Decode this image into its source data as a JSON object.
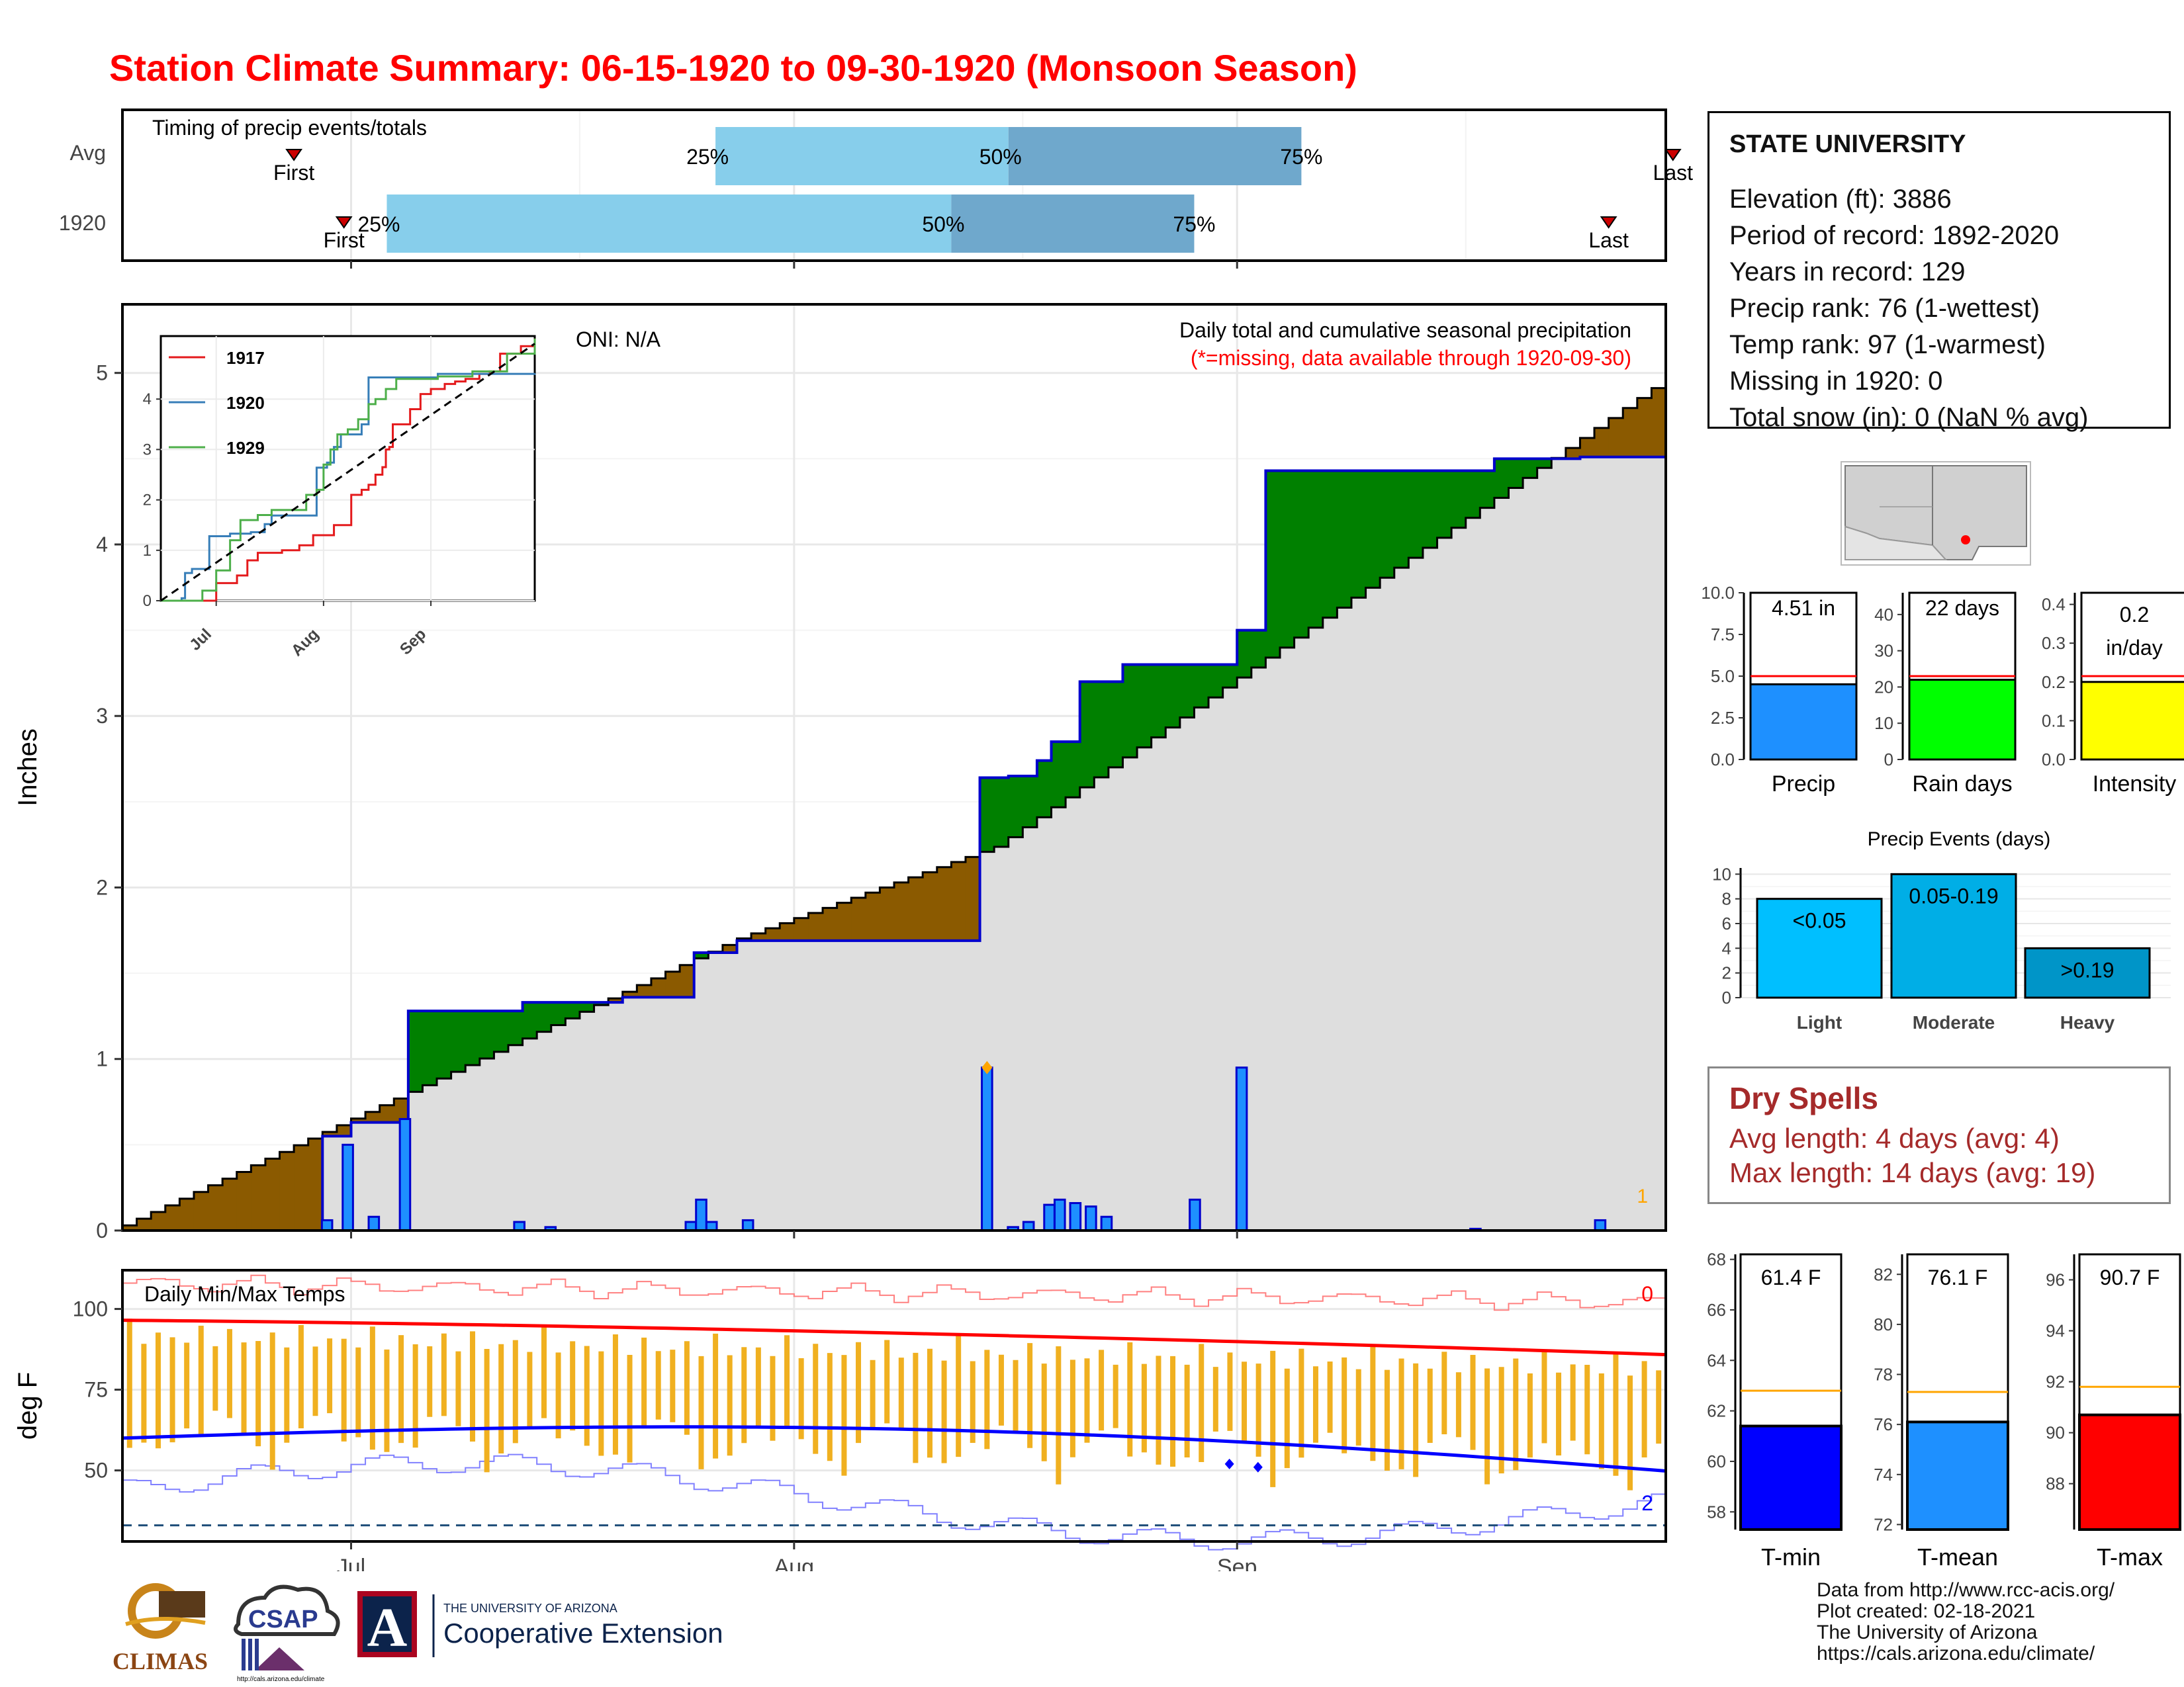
{
  "title": "Station Climate Summary: 06-15-1920 to 09-30-1920 (Monsoon Season)",
  "timing": {
    "label": "Timing of precip events/totals",
    "rows": [
      {
        "name": "Avg",
        "first": 24,
        "q25": 83,
        "q50": 124,
        "q75": 165,
        "last": 217
      },
      {
        "name": "1920",
        "first": 31,
        "q25": 37,
        "q50": 116,
        "q75": 150,
        "last": 208
      }
    ],
    "first_label": "First",
    "last_label": "Last",
    "p25": "25%",
    "p50": "50%",
    "p75": "75%"
  },
  "station": {
    "name": "STATE UNIVERSITY",
    "lines": [
      "Elevation (ft): 3886",
      "Period of record: 1892-2020",
      "Years in record: 129",
      "Precip rank: 76 (1-wettest)",
      "Temp rank: 97 (1-warmest)",
      "Missing in 1920: 0",
      "Total snow (in): 0 (NaN % avg)"
    ]
  },
  "main_chart": {
    "ylabel": "Inches",
    "oni": "ONI: N/A",
    "desc": "Daily total and cumulative seasonal precipitation",
    "missing_note": "(*=missing, data available through 1920-09-30)",
    "corner_count": "1",
    "yticks": [
      "0",
      "1",
      "2",
      "3",
      "4",
      "5"
    ],
    "xticks": [
      "Jul",
      "Aug",
      "Sep"
    ],
    "colors": {
      "above": "#008000",
      "below": "#8b5a00",
      "avg": "#dedede",
      "bar": "#1e90ff",
      "line": "#0000cd"
    }
  },
  "chart_data": [
    {
      "type": "area",
      "title": "Daily total and cumulative seasonal precipitation",
      "ylabel": "Inches",
      "ylim": [
        0,
        5.4
      ],
      "x_range": [
        "1920-06-15",
        "1920-09-30"
      ],
      "series": [
        {
          "name": "1920",
          "steps": [
            [
              0,
              0
            ],
            [
              37,
              0.05
            ],
            [
              38,
              0.55
            ],
            [
              42,
              0.63
            ],
            [
              53,
              1.28
            ],
            [
              75,
              1.33
            ],
            [
              95,
              1.36
            ],
            [
              108,
              1.52
            ],
            [
              110,
              1.62
            ],
            [
              116,
              1.69
            ],
            [
              165,
              2.64
            ],
            [
              170,
              2.65
            ],
            [
              175,
              2.74
            ],
            [
              178,
              2.85
            ],
            [
              182,
              3.05
            ],
            [
              184,
              3.2
            ],
            [
              190,
              3.3
            ],
            [
              214,
              3.5
            ],
            [
              220,
              4.43
            ],
            [
              263,
              4.5
            ],
            [
              280,
              4.51
            ],
            [
              297,
              4.51
            ]
          ]
        },
        {
          "values_note": "average cumulative",
          "steps": [
            [
              0,
              0.03
            ],
            [
              118,
              1.7
            ],
            [
              168,
              2.24
            ],
            [
              297,
              4.97
            ]
          ]
        }
      ],
      "daily_bars": [
        [
          38,
          0.06
        ],
        [
          42,
          0.5
        ],
        [
          47,
          0.08
        ],
        [
          53,
          0.65
        ],
        [
          75,
          0.05
        ],
        [
          81,
          0.02
        ],
        [
          108,
          0.05
        ],
        [
          110,
          0.18
        ],
        [
          112,
          0.05
        ],
        [
          119,
          0.06
        ],
        [
          165,
          0.95
        ],
        [
          170,
          0.02
        ],
        [
          173,
          0.05
        ],
        [
          177,
          0.15
        ],
        [
          179,
          0.18
        ],
        [
          182,
          0.16
        ],
        [
          185,
          0.14
        ],
        [
          188,
          0.08
        ],
        [
          205,
          0.18
        ],
        [
          214,
          0.95
        ],
        [
          259,
          0.01
        ],
        [
          283,
          0.06
        ]
      ]
    },
    {
      "type": "line",
      "title": "Timeseries inset",
      "series_names": [
        "1917",
        "1920",
        "1929"
      ],
      "ylim": [
        0,
        5.2
      ],
      "xticks": [
        "Jul",
        "Aug",
        "Sep"
      ],
      "yticks": [
        "0",
        "1",
        "2",
        "3",
        "4"
      ]
    },
    {
      "type": "bar",
      "categories": [
        "Precip",
        "Rain days",
        "Intensity"
      ],
      "values": [
        4.51,
        22,
        0.2
      ],
      "averages": [
        5.0,
        23,
        0.215
      ],
      "labels": [
        "4.51 in",
        "22 days",
        "0.2"
      ],
      "sublabel": "in/day"
    },
    {
      "type": "bar",
      "title": "Precip Events (days)",
      "categories": [
        "Light",
        "Moderate",
        "Heavy"
      ],
      "labels": [
        "<0.05",
        "0.05-0.19",
        ">0.19"
      ],
      "values": [
        8,
        10,
        4
      ],
      "ylim": [
        0,
        10
      ]
    },
    {
      "type": "bar",
      "categories": [
        "T-min",
        "T-mean",
        "T-max"
      ],
      "labels": [
        "61.4 F",
        "76.1 F",
        "90.7 F"
      ],
      "values": [
        61.4,
        76.1,
        90.7
      ],
      "averages": [
        62.8,
        77.3,
        91.8
      ]
    }
  ],
  "temps": {
    "label": "Daily Min/Max Temps",
    "ylabel": "deg F",
    "yticks": [
      "50",
      "75",
      "100"
    ],
    "count_top": "0",
    "count_bottom": "2"
  },
  "mini_bars": {
    "precip_ticks": [
      "0.0",
      "2.5",
      "5.0",
      "7.5",
      "10.0"
    ],
    "days_ticks": [
      "0",
      "10",
      "20",
      "30",
      "40"
    ],
    "int_ticks": [
      "0.0",
      "0.1",
      "0.2",
      "0.3",
      "0.4"
    ],
    "events_ticks": [
      "0",
      "2",
      "4",
      "6",
      "8",
      "10"
    ],
    "tmin_ticks": [
      "58",
      "60",
      "62",
      "64",
      "66",
      "68"
    ],
    "tmean_ticks": [
      "72",
      "74",
      "76",
      "78",
      "80",
      "82"
    ],
    "tmax_ticks": [
      "88",
      "90",
      "92",
      "94",
      "96"
    ]
  },
  "dry_spells": {
    "title": "Dry Spells",
    "avg": "Avg length: 4 days (avg: 4)",
    "max": "Max length: 14 days (avg: 19)"
  },
  "credits": [
    "Data from http://www.rcc-acis.org/",
    "Plot created: 02-18-2021",
    "The University of Arizona",
    "https://cals.arizona.edu/climate/"
  ],
  "logos": {
    "climas": "CLIMAS",
    "csap": "CSAP",
    "csap_url": "http://cals.arizona.edu/climate",
    "ua_letter": "A",
    "coop_small": "THE UNIVERSITY OF ARIZONA",
    "coop_big": "Cooperative Extension"
  }
}
